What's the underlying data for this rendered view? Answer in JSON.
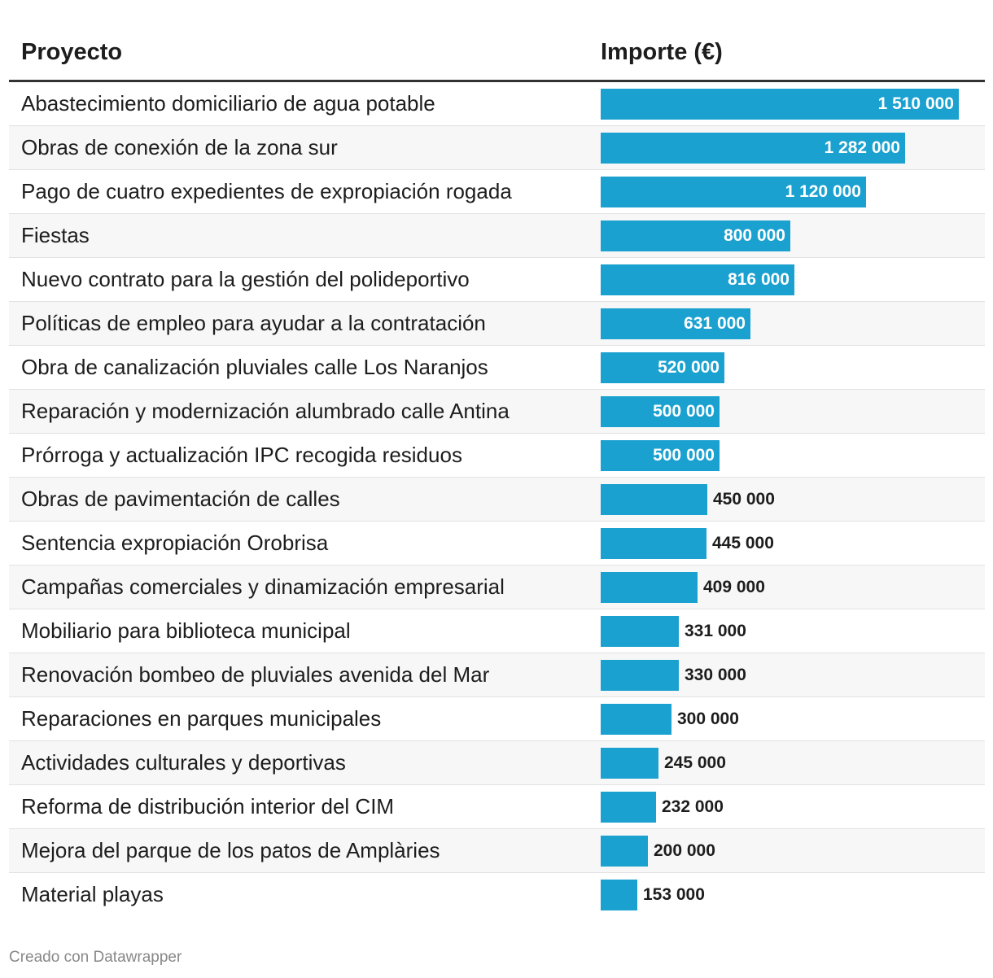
{
  "chart_data": {
    "type": "table",
    "columns": [
      "Proyecto",
      "Importe (€)"
    ],
    "bar_color": "#1ba1cf",
    "max_value": 1510000,
    "rows": [
      {
        "label": "Abastecimiento domiciliario de agua potable",
        "value": 1510000,
        "display": "1 510 000"
      },
      {
        "label": "Obras de conexión de la zona sur",
        "value": 1282000,
        "display": "1 282 000"
      },
      {
        "label": "Pago de cuatro expedientes de expropiación rogada",
        "value": 1120000,
        "display": "1 120 000"
      },
      {
        "label": "Fiestas",
        "value": 800000,
        "display": "800 000"
      },
      {
        "label": "Nuevo contrato para la gestión del polideportivo",
        "value": 816000,
        "display": "816 000"
      },
      {
        "label": "Políticas de empleo para ayudar a la contratación",
        "value": 631000,
        "display": "631 000"
      },
      {
        "label": "Obra de canalización pluviales calle Los Naranjos",
        "value": 520000,
        "display": "520 000"
      },
      {
        "label": "Reparación y modernización alumbrado calle Antina",
        "value": 500000,
        "display": "500 000"
      },
      {
        "label": "Prórroga y actualización IPC recogida residuos",
        "value": 500000,
        "display": "500 000"
      },
      {
        "label": "Obras de pavimentación de calles",
        "value": 450000,
        "display": "450 000"
      },
      {
        "label": "Sentencia expropiación Orobrisa",
        "value": 445000,
        "display": "445 000"
      },
      {
        "label": "Campañas comerciales y dinamización empresarial",
        "value": 409000,
        "display": "409 000"
      },
      {
        "label": "Mobiliario para biblioteca municipal",
        "value": 331000,
        "display": "331 000"
      },
      {
        "label": "Renovación bombeo de pluviales avenida del Mar",
        "value": 330000,
        "display": "330 000"
      },
      {
        "label": "Reparaciones en parques municipales",
        "value": 300000,
        "display": "300 000"
      },
      {
        "label": "Actividades culturales y deportivas",
        "value": 245000,
        "display": "245 000"
      },
      {
        "label": "Reforma de distribución interior del CIM",
        "value": 232000,
        "display": "232 000"
      },
      {
        "label": "Mejora del parque de los patos de Amplàries",
        "value": 200000,
        "display": "200 000"
      },
      {
        "label": "Material playas",
        "value": 153000,
        "display": "153 000"
      }
    ]
  },
  "footer": "Creado con Datawrapper"
}
